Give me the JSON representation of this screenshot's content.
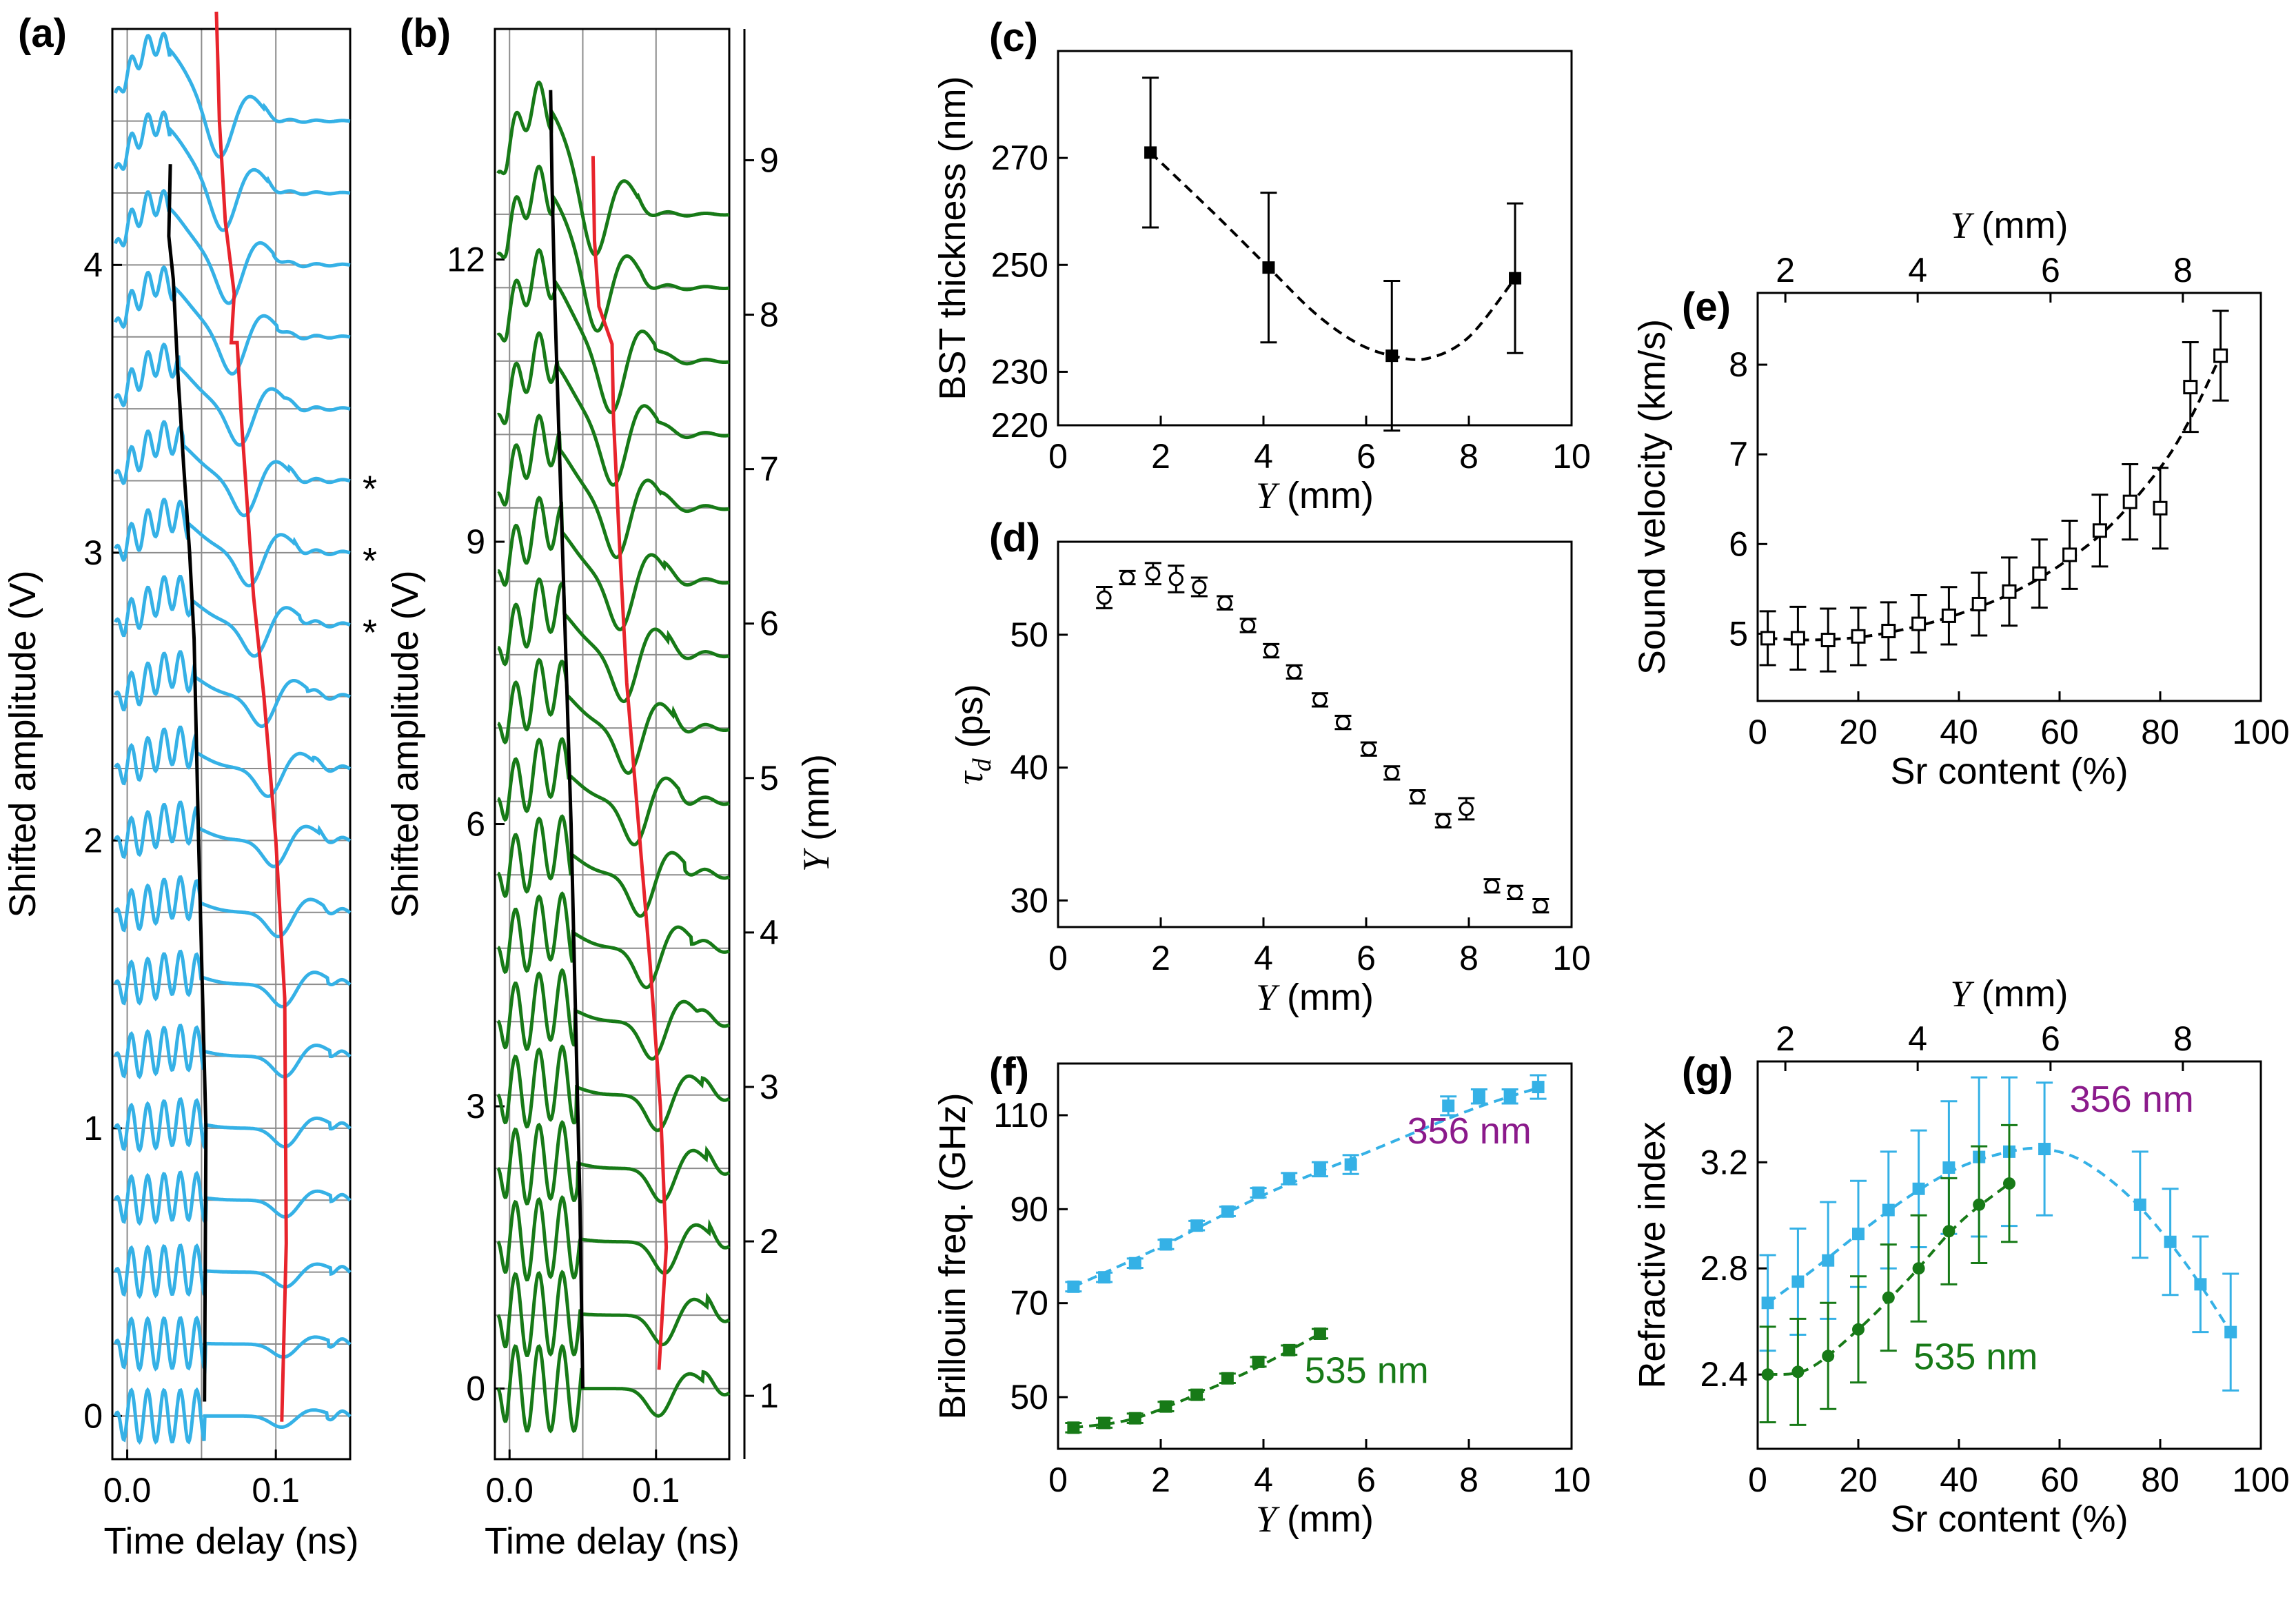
{
  "figure": {
    "colors": {
      "blue": "#35b1e6",
      "green": "#177a17",
      "red": "#e8242c",
      "black": "#000000",
      "purple": "#8b1a8b",
      "grid": "#8c8c8c"
    }
  },
  "chart_data": [
    {
      "id": "a",
      "panel_label": "(a)",
      "type": "line",
      "title": "",
      "xlabel": "Time delay (ns)",
      "ylabel": "Shifted amplitude (V)",
      "xlim": [
        -0.01,
        0.15
      ],
      "ylim": [
        -0.15,
        4.82
      ],
      "xticks": [
        0.0,
        0.1
      ],
      "xtick_labels": [
        "0.0",
        "0.1"
      ],
      "yticks": [
        0,
        1,
        2,
        3,
        4
      ],
      "ytick_labels": [
        "0",
        "1",
        "2",
        "3",
        "4"
      ],
      "trace_count": 19,
      "trace_step": 0.25,
      "trace_color": "blue",
      "black_line": {
        "x": [
          0.052,
          0.053,
          0.048,
          0.045,
          0.042,
          0.038,
          0.034,
          0.031,
          0.028,
          0.029
        ],
        "y": [
          0.05,
          1.0,
          2.0,
          2.7,
          3.0,
          3.3,
          3.63,
          3.95,
          4.1,
          4.35
        ]
      },
      "red_line": {
        "x": [
          0.104,
          0.107,
          0.106,
          0.1,
          0.092,
          0.085,
          0.081,
          0.077,
          0.074,
          0.07,
          0.072,
          0.066,
          0.062,
          0.061,
          0.06
        ],
        "y": [
          -0.02,
          0.6,
          1.45,
          2.0,
          2.5,
          2.85,
          3.15,
          3.45,
          3.73,
          3.73,
          3.9,
          4.15,
          4.5,
          4.7,
          4.88
        ]
      },
      "annotations": [
        {
          "text": "*",
          "trace": 13
        },
        {
          "text": "*",
          "trace": 12
        },
        {
          "text": "*",
          "trace": 11
        }
      ]
    },
    {
      "id": "b",
      "panel_label": "(b)",
      "type": "line",
      "title": "",
      "xlabel": "Time delay (ns)",
      "ylabel": "Shifted amplitude (V)",
      "y2label": "Y (mm)",
      "xlim": [
        -0.01,
        0.15
      ],
      "ylim": [
        -0.75,
        14.45
      ],
      "xticks": [
        0.0,
        0.1
      ],
      "xtick_labels": [
        "0.0",
        "0.1"
      ],
      "yticks": [
        0,
        3,
        6,
        9,
        12
      ],
      "ytick_labels": [
        "0",
        "3",
        "6",
        "9",
        "12"
      ],
      "y2lim": [
        0.59,
        9.85
      ],
      "y2ticks": [
        1,
        2,
        3,
        4,
        5,
        6,
        7,
        8,
        9
      ],
      "y2tick_labels": [
        "1",
        "2",
        "3",
        "4",
        "5",
        "6",
        "7",
        "8",
        "9"
      ],
      "trace_count": 17,
      "trace_step": 0.78,
      "trace_color": "green",
      "black_line": {
        "x": [
          0.05,
          0.048,
          0.045,
          0.042,
          0.038,
          0.034,
          0.031,
          0.029,
          0.028
        ],
        "y": [
          0.0,
          2.0,
          4.0,
          6.0,
          8.0,
          10.0,
          11.5,
          12.8,
          13.8
        ]
      },
      "red_line": {
        "x": [
          0.102,
          0.107,
          0.103,
          0.096,
          0.088,
          0.08,
          0.075,
          0.071,
          0.07,
          0.061,
          0.058,
          0.057
        ],
        "y": [
          0.2,
          1.5,
          3.0,
          4.5,
          6.0,
          7.5,
          9.0,
          10.3,
          11.1,
          11.5,
          12.2,
          13.1
        ]
      }
    },
    {
      "id": "c",
      "panel_label": "(c)",
      "type": "scatter",
      "title": "",
      "xlabel": "Y (mm)",
      "ylabel": "BST thickness (nm)",
      "xlim": [
        0,
        10
      ],
      "ylim": [
        220,
        290
      ],
      "xticks": [
        0,
        2,
        4,
        6,
        8,
        10
      ],
      "xtick_labels": [
        "0",
        "2",
        "4",
        "6",
        "8",
        "10"
      ],
      "yticks": [
        220,
        230,
        250,
        270
      ],
      "ytick_labels": [
        "220",
        "230",
        "250",
        "270"
      ],
      "series": [
        {
          "name": "BST thickness",
          "marker": "filled-square",
          "color": "black",
          "x": [
            1.8,
            4.1,
            6.5,
            8.9
          ],
          "y": [
            271,
            249.5,
            233,
            247.5
          ],
          "err": [
            14,
            14,
            14,
            14
          ]
        }
      ],
      "fit": {
        "style": "dashed",
        "color": "black",
        "x": [
          1.8,
          3.0,
          4.1,
          5.0,
          5.8,
          6.5,
          7.2,
          8.0,
          8.9
        ],
        "y": [
          271,
          260,
          249.5,
          241,
          235.5,
          233,
          232.5,
          236.5,
          247.5
        ]
      }
    },
    {
      "id": "d",
      "panel_label": "(d)",
      "type": "scatter",
      "title": "",
      "xlabel": "Y (mm)",
      "ylabel": "τd (ps)",
      "xlim": [
        0,
        10
      ],
      "ylim": [
        28,
        57
      ],
      "xticks": [
        0,
        2,
        4,
        6,
        8,
        10
      ],
      "xtick_labels": [
        "0",
        "2",
        "4",
        "6",
        "8",
        "10"
      ],
      "yticks": [
        30,
        40,
        50
      ],
      "ytick_labels": [
        "30",
        "40",
        "50"
      ],
      "series": [
        {
          "name": "tau_d",
          "marker": "open-circle",
          "color": "black",
          "x": [
            0.9,
            1.35,
            1.85,
            2.3,
            2.75,
            3.25,
            3.7,
            4.15,
            4.6,
            5.1,
            5.55,
            6.05,
            6.5,
            7.0,
            7.5,
            7.95,
            8.45,
            8.9,
            9.4
          ],
          "y": [
            52.8,
            54.3,
            54.6,
            54.2,
            53.6,
            52.4,
            50.7,
            48.8,
            47.2,
            45.1,
            43.4,
            41.4,
            39.6,
            37.8,
            36.0,
            36.9,
            31.1,
            30.6,
            29.6
          ],
          "err": [
            0.8,
            0.5,
            0.8,
            1.0,
            0.7,
            0.5,
            0.5,
            0.5,
            0.5,
            0.5,
            0.5,
            0.5,
            0.5,
            0.5,
            0.5,
            0.8,
            0.5,
            0.5,
            0.5
          ]
        }
      ]
    },
    {
      "id": "e",
      "panel_label": "(e)",
      "type": "scatter",
      "title": "",
      "xlabel": "Sr content (%)",
      "ylabel": "Sound velocity (km/s)",
      "x2label": "Y (mm)",
      "xlim": [
        0,
        100
      ],
      "ylim": [
        4.25,
        8.8
      ],
      "xticks": [
        0,
        20,
        40,
        60,
        80,
        100
      ],
      "xtick_labels": [
        "0",
        "20",
        "40",
        "60",
        "80",
        "100"
      ],
      "yticks": [
        5,
        6,
        7,
        8
      ],
      "ytick_labels": [
        "5",
        "6",
        "7",
        "8"
      ],
      "x2ticks": [
        2,
        4,
        6,
        8
      ],
      "x2tick_labels": [
        "2",
        "4",
        "6",
        "8"
      ],
      "x2_positions_in_x_units": [
        5.5,
        31.8,
        58.2,
        84.5
      ],
      "series": [
        {
          "name": "Sound velocity",
          "marker": "open-square",
          "color": "black",
          "x": [
            2,
            8,
            14,
            20,
            26,
            32,
            38,
            44,
            50,
            56,
            62,
            68,
            74,
            80,
            86,
            92
          ],
          "y": [
            4.95,
            4.95,
            4.93,
            4.97,
            5.03,
            5.11,
            5.2,
            5.33,
            5.47,
            5.67,
            5.88,
            6.15,
            6.47,
            6.4,
            7.75,
            8.1
          ],
          "err": [
            0.3,
            0.35,
            0.35,
            0.32,
            0.32,
            0.32,
            0.32,
            0.35,
            0.38,
            0.38,
            0.38,
            0.4,
            0.42,
            0.45,
            0.5,
            0.5
          ]
        }
      ],
      "fit": {
        "style": "dashed",
        "color": "black",
        "x": [
          2,
          10,
          20,
          30,
          40,
          50,
          60,
          70,
          80,
          86,
          92
        ],
        "y": [
          4.95,
          4.93,
          4.96,
          5.06,
          5.22,
          5.44,
          5.76,
          6.2,
          6.85,
          7.4,
          8.1
        ]
      }
    },
    {
      "id": "f",
      "panel_label": "(f)",
      "type": "scatter",
      "title": "",
      "xlabel": "Y (mm)",
      "ylabel": "Brillouin freq. (GHz)",
      "xlim": [
        0,
        10
      ],
      "ylim": [
        39,
        121
      ],
      "xticks": [
        0,
        2,
        4,
        6,
        8,
        10
      ],
      "xtick_labels": [
        "0",
        "2",
        "4",
        "6",
        "8",
        "10"
      ],
      "yticks": [
        50,
        70,
        90,
        110
      ],
      "ytick_labels": [
        "50",
        "70",
        "90",
        "110"
      ],
      "series": [
        {
          "name": "356 nm",
          "marker": "filled-square",
          "color": "blue",
          "x": [
            0.3,
            0.9,
            1.5,
            2.1,
            2.7,
            3.3,
            3.9,
            4.5,
            5.1,
            5.7,
            7.6,
            8.2,
            8.8,
            9.35
          ],
          "y": [
            73.5,
            75.5,
            78.5,
            82.5,
            86.5,
            89.5,
            93.5,
            96.5,
            98.5,
            99.5,
            112,
            114,
            114,
            116
          ],
          "err": [
            1,
            1,
            1,
            1,
            1,
            1,
            1,
            1.2,
            1.5,
            2,
            2,
            1.5,
            1.5,
            2.5
          ]
        },
        {
          "name": "535 nm",
          "marker": "filled-square",
          "color": "green",
          "x": [
            0.3,
            0.9,
            1.5,
            2.1,
            2.7,
            3.3,
            3.9,
            4.5,
            5.1
          ],
          "y": [
            43.5,
            44.5,
            45.5,
            48,
            50.5,
            54,
            57.5,
            60,
            63.5
          ],
          "err": [
            1,
            1,
            1,
            1,
            1,
            1,
            1,
            1,
            1
          ]
        }
      ],
      "fits": [
        {
          "color": "blue",
          "style": "dashed",
          "x": [
            0.3,
            2,
            4,
            6,
            8,
            9.4
          ],
          "y": [
            73.5,
            82,
            93,
            102,
            111,
            116
          ]
        },
        {
          "color": "green",
          "style": "dashed",
          "x": [
            0.3,
            1.5,
            3,
            4,
            5.1
          ],
          "y": [
            43.5,
            45.5,
            52,
            57,
            63.5
          ]
        }
      ],
      "annotations": [
        {
          "text": "356 nm",
          "color": "purple",
          "series": "356 nm"
        },
        {
          "text": "535 nm",
          "color": "green",
          "series": "535 nm"
        }
      ]
    },
    {
      "id": "g",
      "panel_label": "(g)",
      "type": "scatter",
      "title": "",
      "xlabel": "Sr content (%)",
      "ylabel": "Refractive index",
      "x2label": "Y (mm)",
      "xlim": [
        0,
        100
      ],
      "ylim": [
        2.12,
        3.58
      ],
      "xticks": [
        0,
        20,
        40,
        60,
        80,
        100
      ],
      "xtick_labels": [
        "0",
        "20",
        "40",
        "60",
        "80",
        "100"
      ],
      "yticks": [
        2.4,
        2.8,
        3.2
      ],
      "ytick_labels": [
        "2.4",
        "2.8",
        "3.2"
      ],
      "x2ticks": [
        2,
        4,
        6,
        8
      ],
      "x2tick_labels": [
        "2",
        "4",
        "6",
        "8"
      ],
      "x2_positions_in_x_units": [
        5.5,
        31.8,
        58.2,
        84.5
      ],
      "series": [
        {
          "name": "356 nm",
          "marker": "filled-square",
          "color": "blue",
          "x": [
            2,
            8,
            14,
            20,
            26,
            32,
            38,
            44,
            50,
            57,
            76,
            82,
            88,
            94
          ],
          "y": [
            2.67,
            2.75,
            2.83,
            2.93,
            3.02,
            3.1,
            3.18,
            3.22,
            3.24,
            3.25,
            3.04,
            2.9,
            2.74,
            2.56
          ],
          "err": [
            0.18,
            0.2,
            0.22,
            0.2,
            0.22,
            0.22,
            0.25,
            0.3,
            0.28,
            0.25,
            0.2,
            0.2,
            0.18,
            0.22
          ]
        },
        {
          "name": "535 nm",
          "marker": "filled-circle",
          "color": "green",
          "x": [
            2,
            8,
            14,
            20,
            26,
            32,
            38,
            44,
            50
          ],
          "y": [
            2.4,
            2.41,
            2.47,
            2.57,
            2.69,
            2.8,
            2.94,
            3.04,
            3.12
          ],
          "err": [
            0.18,
            0.2,
            0.2,
            0.2,
            0.2,
            0.2,
            0.2,
            0.22,
            0.22
          ]
        }
      ],
      "fits": [
        {
          "color": "blue",
          "style": "dashed",
          "x": [
            2,
            10,
            20,
            30,
            40,
            50,
            57,
            65,
            75,
            85,
            94
          ],
          "y": [
            2.67,
            2.78,
            2.93,
            3.07,
            3.18,
            3.24,
            3.25,
            3.2,
            3.05,
            2.82,
            2.56
          ]
        },
        {
          "color": "green",
          "style": "dashed",
          "x": [
            2,
            10,
            20,
            30,
            40,
            50
          ],
          "y": [
            2.4,
            2.42,
            2.57,
            2.76,
            2.97,
            3.12
          ]
        }
      ],
      "annotations": [
        {
          "text": "356 nm",
          "color": "purple",
          "series": "356 nm"
        },
        {
          "text": "535 nm",
          "color": "green",
          "series": "535 nm"
        }
      ]
    }
  ]
}
